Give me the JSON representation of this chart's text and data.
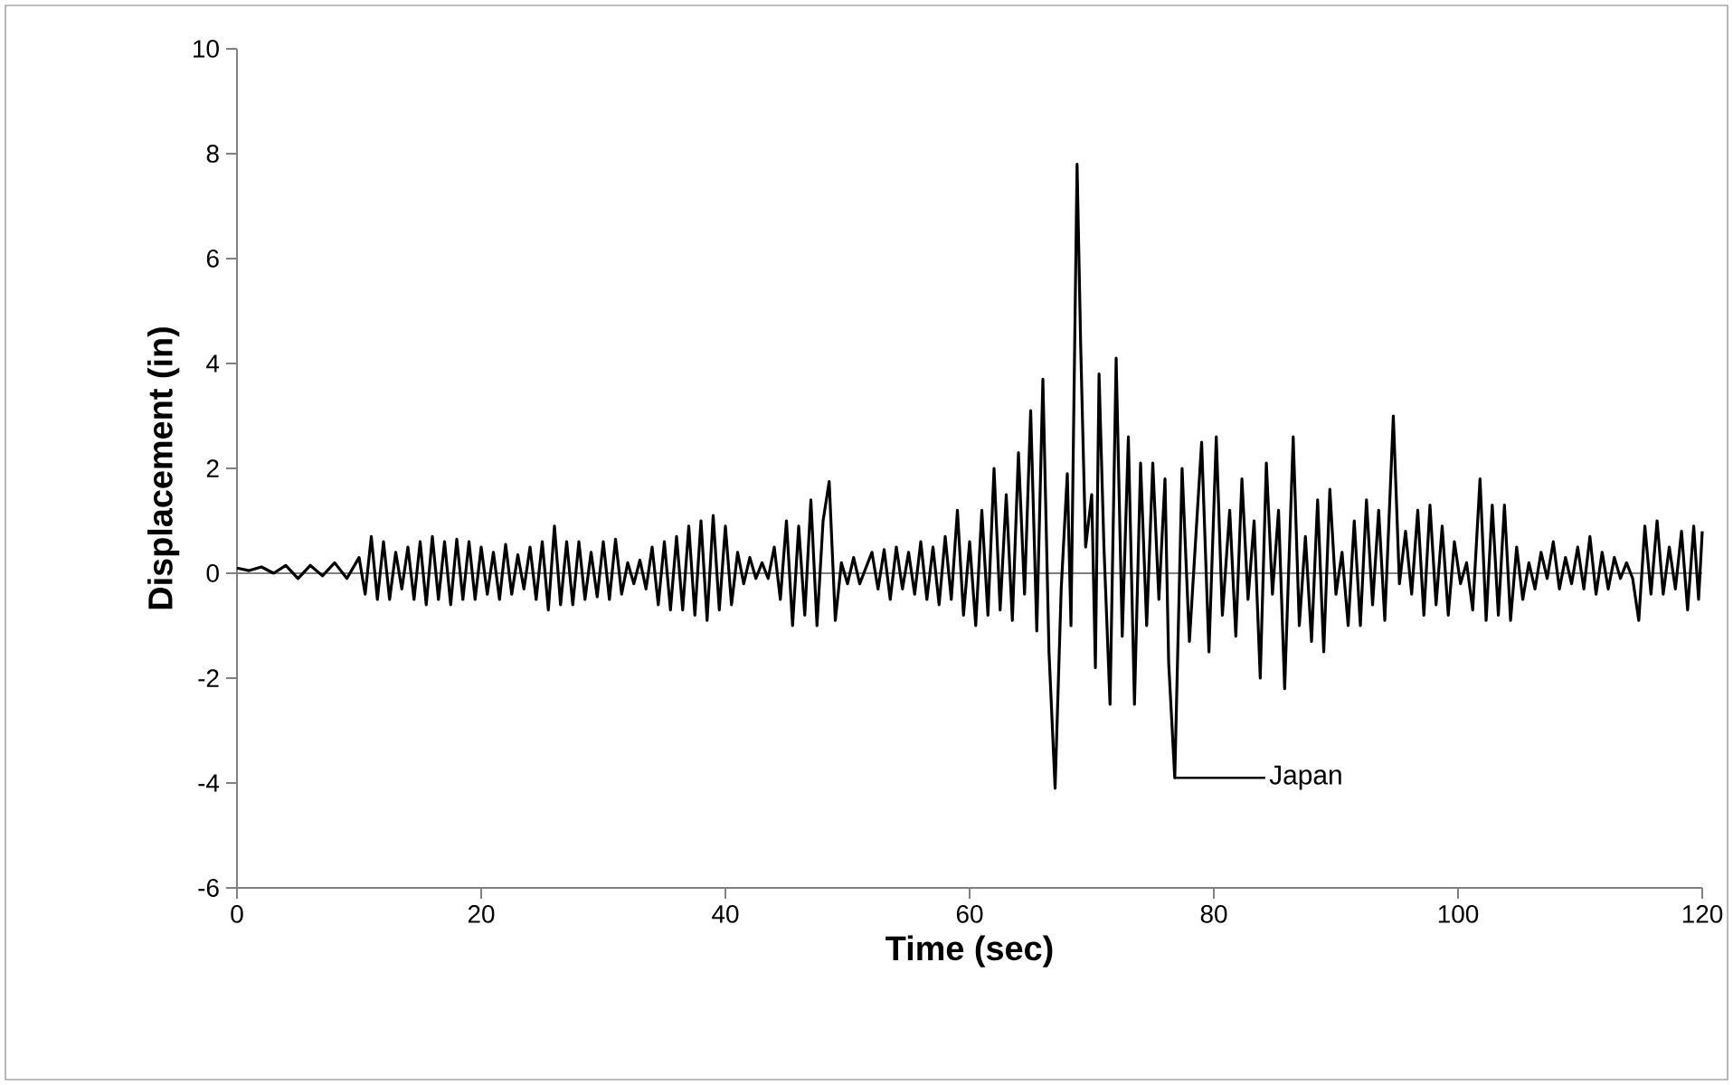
{
  "chart_data": {
    "type": "line",
    "xlabel": "Time (sec)",
    "ylabel": "Displacement (in)",
    "xlim": [
      0,
      120
    ],
    "xticks": [
      0,
      20,
      40,
      60,
      80,
      100,
      120
    ],
    "ylim": [
      -6,
      10
    ],
    "yticks": [
      -6,
      -4,
      -2,
      0,
      2,
      4,
      6,
      8,
      10
    ],
    "marker": "none",
    "line_style": "solid",
    "ref_lines": [
      {
        "axis": "y",
        "value": 0,
        "color": "#808080"
      }
    ],
    "series": [
      {
        "name": "Japan",
        "color": "#000000",
        "x": [
          0,
          1,
          2,
          3,
          4,
          5,
          6,
          7,
          8,
          9,
          10,
          10.5,
          11,
          11.5,
          12,
          12.5,
          13,
          13.5,
          14,
          14.5,
          15,
          15.5,
          16,
          16.5,
          17,
          17.5,
          18,
          18.5,
          19,
          19.5,
          20,
          20.5,
          21,
          21.5,
          22,
          22.5,
          23,
          23.5,
          24,
          24.5,
          25,
          25.5,
          26,
          26.5,
          27,
          27.5,
          28,
          28.5,
          29,
          29.5,
          30,
          30.5,
          31,
          31.5,
          32,
          32.5,
          33,
          33.5,
          34,
          34.5,
          35,
          35.5,
          36,
          36.5,
          37,
          37.5,
          38,
          38.5,
          39,
          39.5,
          40,
          40.5,
          41,
          41.5,
          42,
          42.5,
          43,
          43.5,
          44,
          44.5,
          45,
          45.5,
          46,
          46.5,
          47,
          47.5,
          48,
          48.5,
          49,
          49.5,
          50,
          50.5,
          51,
          52,
          52.5,
          53,
          53.5,
          54,
          54.5,
          55,
          55.5,
          56,
          56.5,
          57,
          57.5,
          58,
          58.5,
          59,
          59.5,
          60,
          60.5,
          61,
          61.5,
          62,
          62.5,
          63,
          63.5,
          64,
          64.5,
          65,
          65.5,
          66,
          66.5,
          67,
          67.5,
          68,
          68.3,
          68.8,
          69.1,
          69.5,
          70,
          70.3,
          70.6,
          71,
          71.5,
          72,
          72.5,
          73,
          73.5,
          74,
          74.5,
          75,
          75.5,
          76,
          76.3,
          76.8,
          77.4,
          78,
          78.5,
          79,
          79.6,
          80.2,
          80.7,
          81.3,
          81.8,
          82.3,
          82.8,
          83.3,
          83.8,
          84.3,
          84.8,
          85.3,
          85.8,
          86.5,
          87,
          87.5,
          88,
          88.5,
          89,
          89.5,
          90,
          90.5,
          91,
          91.5,
          92,
          92.5,
          93,
          93.5,
          94,
          94.7,
          95.2,
          95.7,
          96.2,
          96.7,
          97.2,
          97.7,
          98.2,
          98.7,
          99.2,
          99.7,
          100.2,
          100.7,
          101.2,
          101.8,
          102.3,
          102.8,
          103.3,
          103.8,
          104.3,
          104.8,
          105.3,
          105.8,
          106.3,
          106.8,
          107.3,
          107.8,
          108.3,
          108.8,
          109.3,
          109.8,
          110.3,
          110.8,
          111.3,
          111.8,
          112.3,
          112.8,
          113.3,
          113.8,
          114.3,
          114.8,
          115.3,
          115.8,
          116.3,
          116.8,
          117.3,
          117.8,
          118.3,
          118.8,
          119.3,
          119.7,
          120
        ],
        "values": [
          0.1,
          0.05,
          0.12,
          0.0,
          0.15,
          -0.1,
          0.15,
          -0.05,
          0.2,
          -0.1,
          0.3,
          -0.4,
          0.7,
          -0.5,
          0.6,
          -0.5,
          0.4,
          -0.3,
          0.5,
          -0.5,
          0.6,
          -0.6,
          0.7,
          -0.5,
          0.6,
          -0.6,
          0.65,
          -0.5,
          0.6,
          -0.5,
          0.5,
          -0.4,
          0.4,
          -0.5,
          0.55,
          -0.4,
          0.35,
          -0.3,
          0.5,
          -0.5,
          0.6,
          -0.7,
          0.9,
          -0.6,
          0.6,
          -0.6,
          0.6,
          -0.5,
          0.4,
          -0.45,
          0.6,
          -0.5,
          0.65,
          -0.4,
          0.2,
          -0.2,
          0.25,
          -0.3,
          0.5,
          -0.6,
          0.6,
          -0.7,
          0.7,
          -0.7,
          0.9,
          -0.8,
          1.0,
          -0.9,
          1.1,
          -0.7,
          0.9,
          -0.6,
          0.4,
          -0.2,
          0.3,
          -0.1,
          0.2,
          -0.1,
          0.5,
          -0.5,
          1.0,
          -1.0,
          0.9,
          -0.8,
          1.4,
          -1.0,
          1.0,
          1.75,
          -0.9,
          0.2,
          -0.2,
          0.3,
          -0.2,
          0.4,
          -0.3,
          0.45,
          -0.5,
          0.5,
          -0.3,
          0.4,
          -0.4,
          0.6,
          -0.5,
          0.5,
          -0.6,
          0.7,
          -0.5,
          1.2,
          -0.8,
          0.6,
          -1.0,
          1.2,
          -0.8,
          2.0,
          -0.7,
          1.5,
          -0.9,
          2.3,
          -0.4,
          3.1,
          -1.1,
          3.7,
          -1.5,
          -4.1,
          -0.3,
          1.9,
          -1.0,
          7.8,
          4.3,
          0.5,
          1.5,
          -1.8,
          3.8,
          0.5,
          -2.5,
          4.1,
          -1.2,
          2.6,
          -2.5,
          2.1,
          -1.0,
          2.1,
          -0.5,
          1.8,
          -1.7,
          -3.9,
          2.0,
          -1.3,
          0.6,
          2.5,
          -1.5,
          2.6,
          -0.8,
          1.2,
          -1.2,
          1.8,
          -0.5,
          1.0,
          -2.0,
          2.1,
          -0.4,
          1.2,
          -2.2,
          2.6,
          -1.0,
          0.7,
          -1.3,
          1.4,
          -1.5,
          1.6,
          -0.4,
          0.4,
          -1.0,
          1.0,
          -1.0,
          1.4,
          -0.6,
          1.2,
          -0.9,
          3.0,
          -0.2,
          0.8,
          -0.4,
          1.2,
          -0.8,
          1.3,
          -0.6,
          0.9,
          -0.8,
          0.6,
          -0.2,
          0.2,
          -0.7,
          1.8,
          -0.9,
          1.3,
          -0.8,
          1.3,
          -0.9,
          0.5,
          -0.5,
          0.2,
          -0.3,
          0.4,
          -0.1,
          0.6,
          -0.3,
          0.3,
          -0.2,
          0.5,
          -0.3,
          0.7,
          -0.4,
          0.4,
          -0.3,
          0.3,
          -0.1,
          0.2,
          -0.1,
          -0.9,
          0.9,
          -0.4,
          1.0,
          -0.4,
          0.5,
          -0.3,
          0.8,
          -0.7,
          0.9,
          -0.5,
          0.8
        ]
      }
    ]
  }
}
